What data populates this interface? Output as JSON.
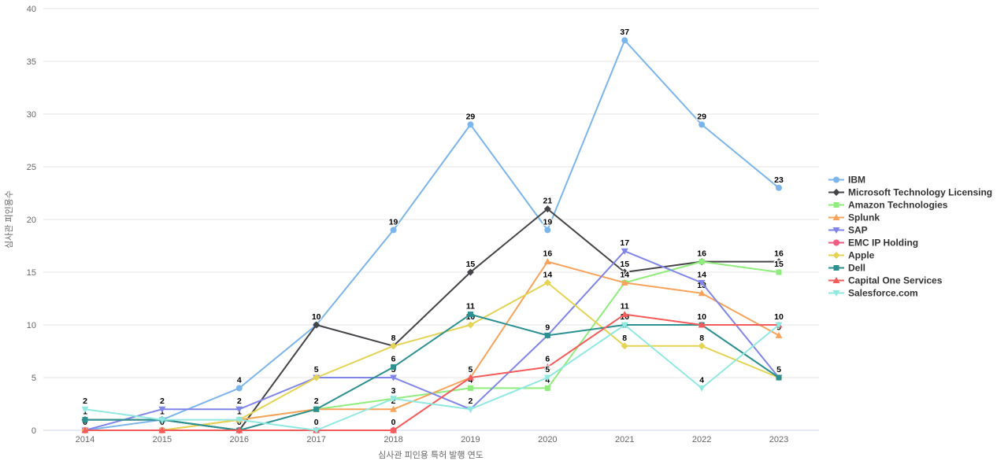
{
  "chart_data": {
    "type": "line",
    "title": "",
    "xlabel": "심사관 피인용 특허 발행 연도",
    "ylabel": "심사관 피인용수",
    "x": [
      2014,
      2015,
      2016,
      2017,
      2018,
      2019,
      2020,
      2021,
      2022,
      2023
    ],
    "ylim": [
      0,
      40
    ],
    "yticks": [
      0,
      5,
      10,
      15,
      20,
      25,
      30,
      35,
      40
    ],
    "grid": true,
    "legend_position": "right",
    "data_labels": true,
    "axis_line_color": "#ccd6eb",
    "grid_color": "#e6e6e6",
    "series": [
      {
        "name": "IBM",
        "color": "#7cb5ec",
        "marker": "circle",
        "values": [
          0,
          1,
          4,
          10,
          19,
          29,
          19,
          37,
          29,
          23
        ]
      },
      {
        "name": "Microsoft Technology Licensing",
        "color": "#434348",
        "marker": "diamond",
        "values": [
          1,
          1,
          0,
          10,
          8,
          15,
          21,
          15,
          16,
          16
        ]
      },
      {
        "name": "Amazon Technologies",
        "color": "#90ed7d",
        "marker": "square",
        "values": [
          0,
          0,
          1,
          2,
          3,
          4,
          4,
          14,
          16,
          15
        ]
      },
      {
        "name": "Splunk",
        "color": "#f7a35c",
        "marker": "triangle",
        "values": [
          0,
          0,
          1,
          2,
          2,
          5,
          16,
          14,
          13,
          9
        ]
      },
      {
        "name": "SAP",
        "color": "#8085e9",
        "marker": "triangle-down",
        "values": [
          0,
          2,
          2,
          5,
          5,
          2,
          9,
          17,
          14,
          5
        ]
      },
      {
        "name": "EMC IP Holding",
        "color": "#f15c80",
        "marker": "circle",
        "values": [
          0,
          0,
          0,
          0,
          0,
          null,
          null,
          null,
          null,
          null
        ]
      },
      {
        "name": "Apple",
        "color": "#e4d354",
        "marker": "diamond",
        "values": [
          0,
          0,
          1,
          5,
          8,
          10,
          14,
          8,
          8,
          5
        ]
      },
      {
        "name": "Dell",
        "color": "#2b908f",
        "marker": "square",
        "values": [
          1,
          1,
          0,
          2,
          6,
          11,
          9,
          10,
          10,
          5
        ]
      },
      {
        "name": "Capital One Services",
        "color": "#f45b5b",
        "marker": "triangle",
        "values": [
          0,
          0,
          0,
          0,
          0,
          5,
          6,
          11,
          10,
          10
        ]
      },
      {
        "name": "Salesforce.com",
        "color": "#91e8e1",
        "marker": "triangle-down",
        "values": [
          2,
          1,
          1,
          0,
          3,
          2,
          5,
          10,
          4,
          10
        ]
      }
    ]
  }
}
